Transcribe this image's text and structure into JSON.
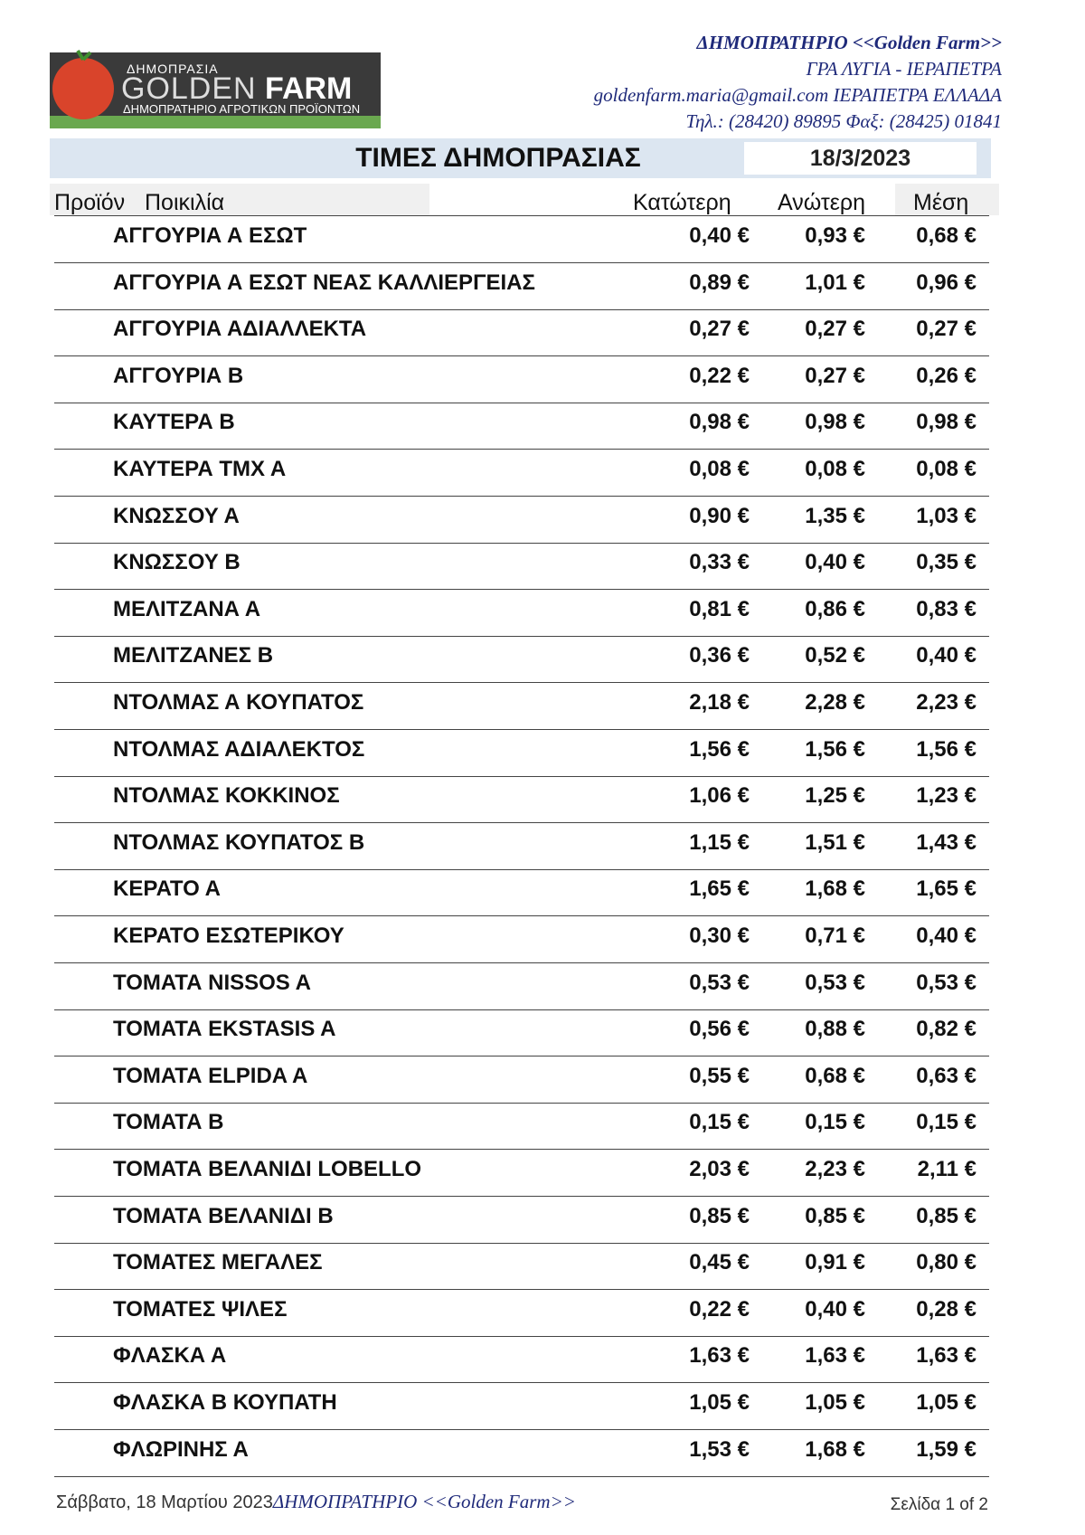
{
  "logo": {
    "top": "ΔΗΜΟΠΡΑΣΙΑ",
    "main_light": "GOLDEN",
    "main_bold": "FARM",
    "tagline": "ΔΗΜΟΠΡΑΤΗΡΙΟ ΑΓΡΟΤΙΚΩΝ ΠΡΟΪΟΝΤΩΝ"
  },
  "header": {
    "name": "ΔΗΜΟΠΡΑΤΗΡΙΟ <<Golden Farm>>",
    "location": "ΓΡΑ ΛΥΓΙΑ - ΙΕΡΑΠΕΤΡΑ",
    "email_line": "goldenfarm.maria@gmail.com ΙΕΡΑΠΕΤΡΑ ΕΛΛΑΔΑ",
    "phone_line": "Τηλ.: (28420)  89895  Φαξ: (28425) 01841"
  },
  "title": "ΤΙΜΕΣ ΔΗΜΟΠΡΑΣΙΑΣ",
  "date": "18/3/2023",
  "table": {
    "columns": [
      "Προϊόν",
      "Ποικιλία",
      "Κατώτερη",
      "Ανώτερη",
      "Μέση"
    ],
    "rows": [
      [
        "ΑΓΓΟΥΡΙΑ Α ΕΣΩΤ",
        "0,40 €",
        "0,93 €",
        "0,68 €"
      ],
      [
        "ΑΓΓΟΥΡΙΑ Α ΕΣΩΤ ΝΕΑΣ ΚΑΛΛΙΕΡΓΕΙΑΣ",
        "0,89 €",
        "1,01 €",
        "0,96 €"
      ],
      [
        "ΑΓΓΟΥΡΙΑ ΑΔΙΑΛΛΕΚΤΑ",
        "0,27 €",
        "0,27 €",
        "0,27 €"
      ],
      [
        "ΑΓΓΟΥΡΙΑ Β",
        "0,22 €",
        "0,27 €",
        "0,26 €"
      ],
      [
        "ΚΑΥΤΕΡΑ Β",
        "0,98 €",
        "0,98 €",
        "0,98 €"
      ],
      [
        "ΚΑΥΤΕΡΑ ΤΜΧ Α",
        "0,08 €",
        "0,08 €",
        "0,08 €"
      ],
      [
        "ΚΝΩΣΣΟΥ Α",
        "0,90 €",
        "1,35 €",
        "1,03 €"
      ],
      [
        "ΚΝΩΣΣΟΥ Β",
        "0,33 €",
        "0,40 €",
        "0,35 €"
      ],
      [
        "ΜΕΛΙΤΖΑΝΑ Α",
        "0,81 €",
        "0,86 €",
        "0,83 €"
      ],
      [
        "ΜΕΛΙΤΖΑΝΕΣ Β",
        "0,36 €",
        "0,52 €",
        "0,40 €"
      ],
      [
        "ΝΤΟΛΜΑΣ Α ΚΟΥΠΑΤΟΣ",
        "2,18 €",
        "2,28 €",
        "2,23 €"
      ],
      [
        "ΝΤΟΛΜΑΣ ΑΔΙΑΛΕΚΤΟΣ",
        "1,56 €",
        "1,56 €",
        "1,56 €"
      ],
      [
        "ΝΤΟΛΜΑΣ ΚΟΚΚΙΝΟΣ",
        "1,06 €",
        "1,25 €",
        "1,23 €"
      ],
      [
        "ΝΤΟΛΜΑΣ ΚΟΥΠΑΤΟΣ Β",
        "1,15 €",
        "1,51 €",
        "1,43 €"
      ],
      [
        "ΚΕΡΑΤΟ Α",
        "1,65 €",
        "1,68 €",
        "1,65 €"
      ],
      [
        "ΚΕΡΑΤΟ ΕΣΩΤΕΡΙΚΟΥ",
        "0,30 €",
        "0,71 €",
        "0,40 €"
      ],
      [
        "ΤΟΜΑΤΑ NISSOS A",
        "0,53 €",
        "0,53 €",
        "0,53 €"
      ],
      [
        "ΤΟΜΑΤΑ EKSTASIS A",
        "0,56 €",
        "0,88 €",
        "0,82 €"
      ],
      [
        "ΤΟΜΑΤΑ ELPIDA A",
        "0,55 €",
        "0,68 €",
        "0,63 €"
      ],
      [
        "ΤΟΜΑΤΑ Β",
        "0,15 €",
        "0,15 €",
        "0,15 €"
      ],
      [
        "ΤΟΜΑΤΑ ΒΕΛΑΝΙΔΙ LOBELLO",
        "2,03 €",
        "2,23 €",
        "2,11 €"
      ],
      [
        "ΤΟΜΑΤΑ ΒΕΛΑΝΙΔΙ Β",
        "0,85 €",
        "0,85 €",
        "0,85 €"
      ],
      [
        "ΤΟΜΑΤΕΣ ΜΕΓΑΛΕΣ",
        "0,45 €",
        "0,91 €",
        "0,80 €"
      ],
      [
        "ΤΟΜΑΤΕΣ ΨΙΛΕΣ",
        "0,22 €",
        "0,40 €",
        "0,28 €"
      ],
      [
        "ΦΛΑΣΚΑ Α",
        "1,63 €",
        "1,63 €",
        "1,63 €"
      ],
      [
        "ΦΛΑΣΚΑ Β ΚΟΥΠΑΤΗ",
        "1,05 €",
        "1,05 €",
        "1,05 €"
      ],
      [
        "ΦΛΩΡΙΝΗΣ Α",
        "1,53 €",
        "1,68 €",
        "1,59 €"
      ]
    ]
  },
  "footer": {
    "date": "Σάββατο, 18 Μαρτίου 2023",
    "name": "ΔΗΜΟΠΡΑΤΗΡΙΟ <<Golden Farm>>",
    "page": "Σελίδα 1 of 2"
  }
}
